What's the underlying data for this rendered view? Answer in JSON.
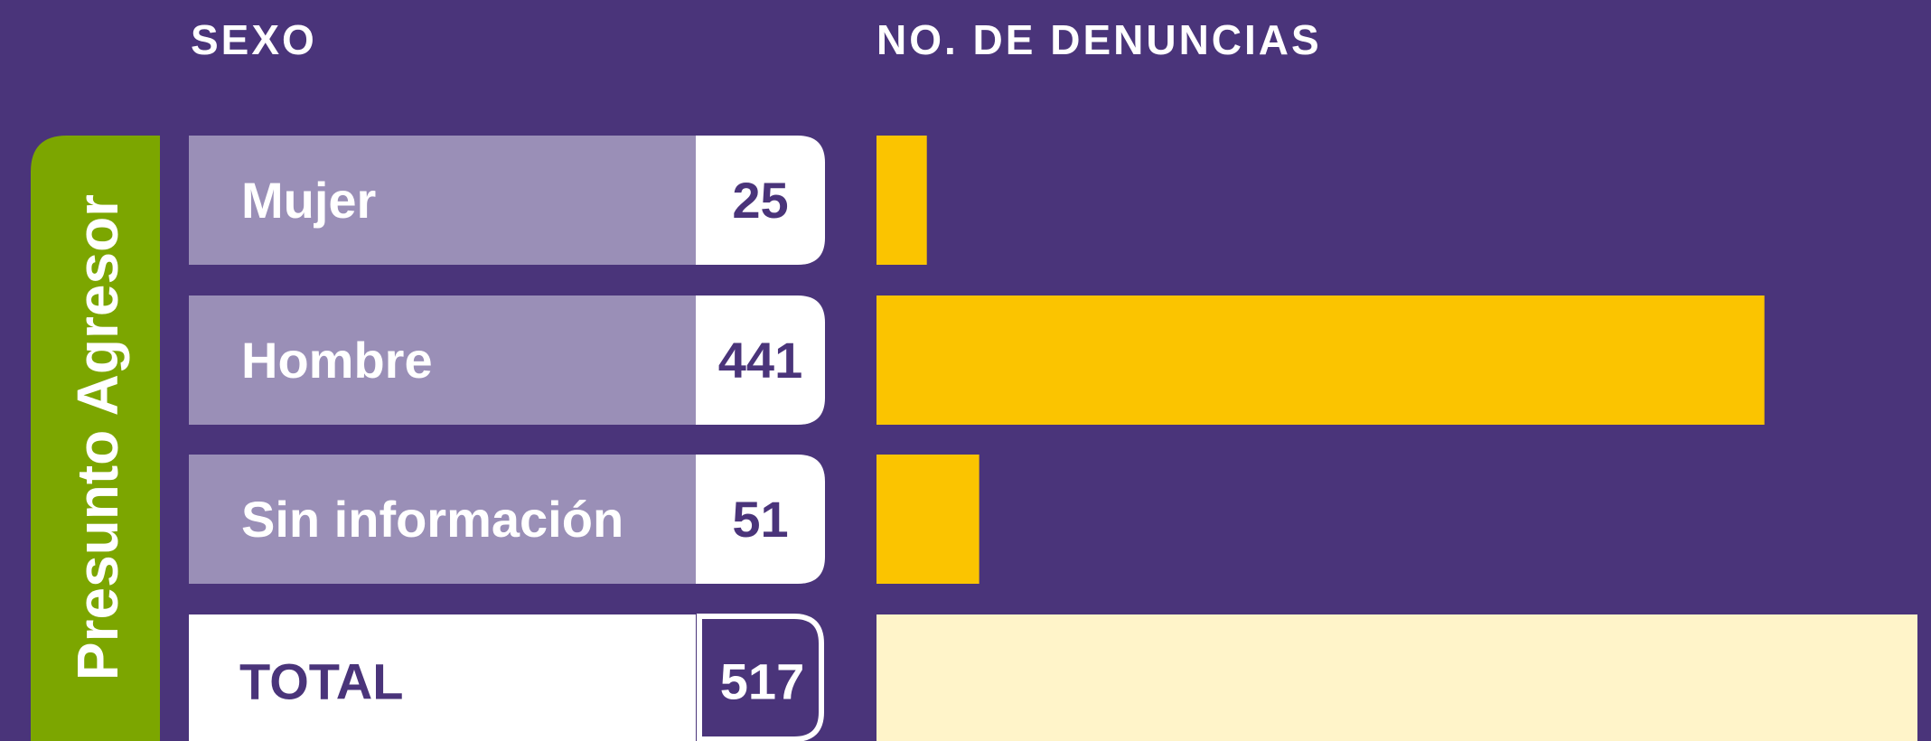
{
  "chart_data": {
    "type": "bar",
    "column_headers": [
      "SEXO",
      "NO. DE DENUNCIAS"
    ],
    "side_label": "Presunto Agresor",
    "categories": [
      "Mujer",
      "Hombre",
      "Sin información"
    ],
    "values": [
      25,
      441,
      51
    ],
    "color": "#fbc400",
    "total_label": "TOTAL",
    "total": 517,
    "total_color": "#fff4c9"
  }
}
